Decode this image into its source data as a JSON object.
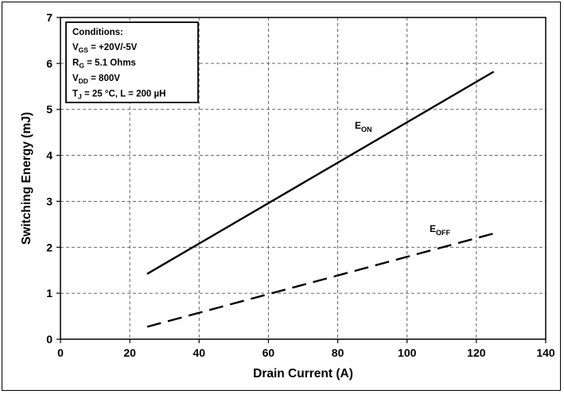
{
  "chart_data": {
    "type": "line",
    "title": "",
    "xlabel": "Drain Current (A)",
    "ylabel": "Switching Energy (mJ)",
    "xlim": [
      0,
      140
    ],
    "ylim": [
      0,
      7
    ],
    "xticks": [
      0,
      20,
      40,
      60,
      80,
      100,
      120,
      140
    ],
    "yticks": [
      0,
      1,
      2,
      3,
      4,
      5,
      6,
      7
    ],
    "grid": "dashed",
    "legend": "none",
    "series": [
      {
        "name": "EON",
        "label_main": "E",
        "label_sub": "ON",
        "style": "solid",
        "color": "#000000",
        "x": [
          25,
          125
        ],
        "y": [
          1.42,
          5.82
        ]
      },
      {
        "name": "EOFF",
        "label_main": "E",
        "label_sub": "OFF",
        "style": "dashed",
        "color": "#000000",
        "x": [
          25,
          125
        ],
        "y": [
          0.27,
          2.3
        ]
      }
    ],
    "conditions_box": {
      "heading": "Conditions:",
      "lines": [
        {
          "main": "V",
          "sub": "GS",
          "rest": " = +20V/-5V"
        },
        {
          "main": "R",
          "sub": "G",
          "rest": " = 5.1 Ohms"
        },
        {
          "main": "V",
          "sub": "DD",
          "rest": " = 800V"
        },
        {
          "main": "T",
          "sub": "J",
          "rest": " = 25 °C, L = 200 µH"
        }
      ]
    }
  }
}
